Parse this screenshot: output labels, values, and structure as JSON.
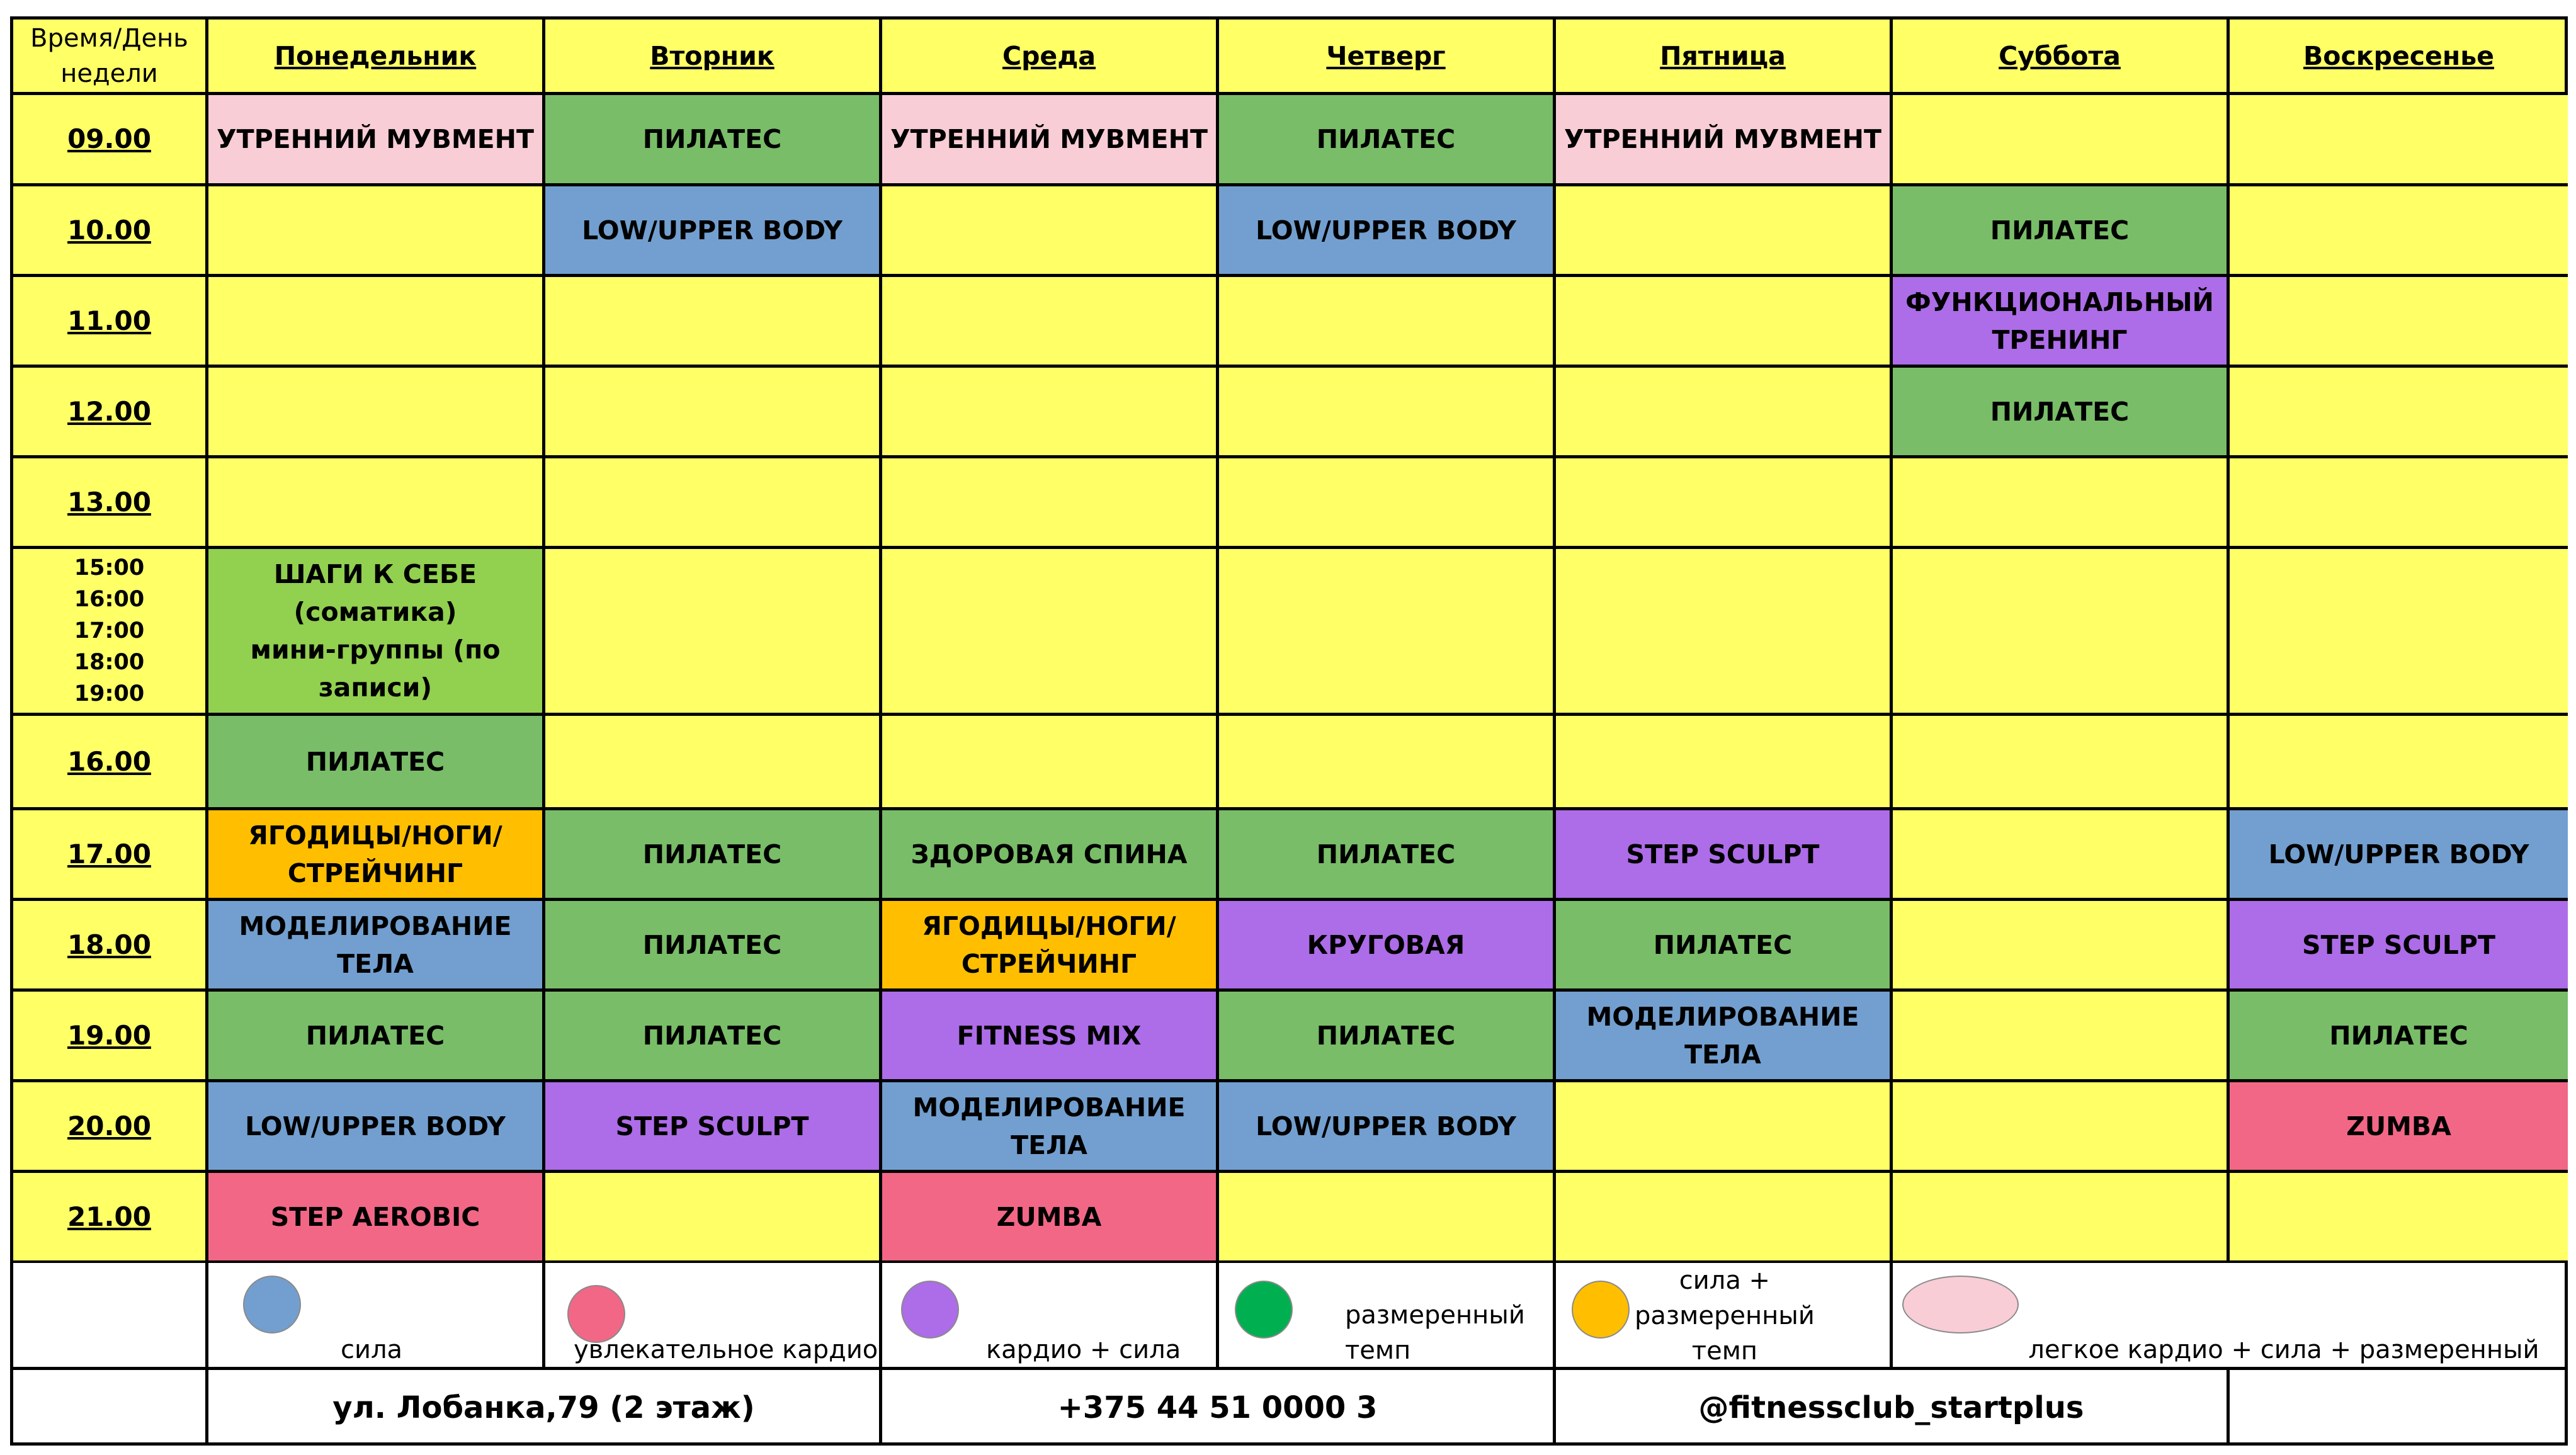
{
  "corner_label": "Время/День\nнедели",
  "days": [
    "Понедельник",
    "Вторник",
    "Среда",
    "Четверг",
    "Пятница",
    "Суббота",
    "Воскресенье"
  ],
  "times": [
    "09.00",
    "10.00",
    "11.00",
    "12.00",
    "13.00",
    "15:00\n16:00\n17:00\n18:00\n19:00",
    "16.00",
    "17.00",
    "18.00",
    "19.00",
    "20.00",
    "21.00"
  ],
  "colors": {
    "background": "#ffff66",
    "light_pink": "#f8cdd6",
    "green": "#79bd68",
    "blue": "#729fcf",
    "purple": "#ad6ce8",
    "orange": "#ffbf00",
    "red_pink": "#f26786",
    "light_green": "#92d050",
    "legend_green": "#00b050"
  },
  "grid": [
    [
      {
        "text": "УТРЕННИЙ МУВМЕНТ",
        "color": "light_pink"
      },
      {
        "text": "ПИЛАТЕС",
        "color": "green"
      },
      {
        "text": "УТРЕННИЙ МУВМЕНТ",
        "color": "light_pink"
      },
      {
        "text": "ПИЛАТЕС",
        "color": "green"
      },
      {
        "text": "УТРЕННИЙ МУВМЕНТ",
        "color": "light_pink"
      },
      null,
      null
    ],
    [
      null,
      {
        "text": "LOW/UPPER BODY",
        "color": "blue"
      },
      null,
      {
        "text": "LOW/UPPER BODY",
        "color": "blue"
      },
      null,
      {
        "text": "ПИЛАТЕС",
        "color": "green"
      },
      null
    ],
    [
      null,
      null,
      null,
      null,
      null,
      {
        "text": "ФУНКЦИОНАЛЬНЫЙ\nТРЕНИНГ",
        "color": "purple"
      },
      null
    ],
    [
      null,
      null,
      null,
      null,
      null,
      {
        "text": "ПИЛАТЕС",
        "color": "green"
      },
      null
    ],
    [
      null,
      null,
      null,
      null,
      null,
      null,
      null
    ],
    [
      {
        "text": "ШАГИ К СЕБЕ (соматика)\nмини-группы (по записи)",
        "color": "light_green"
      },
      null,
      null,
      null,
      null,
      null,
      null
    ],
    [
      {
        "text": "ПИЛАТЕС",
        "color": "green"
      },
      null,
      null,
      null,
      null,
      null,
      null
    ],
    [
      {
        "text": "ЯГОДИЦЫ/НОГИ/\nСТРЕЙЧИНГ",
        "color": "orange"
      },
      {
        "text": "ПИЛАТЕС",
        "color": "green"
      },
      {
        "text": "ЗДОРОВАЯ СПИНА",
        "color": "green"
      },
      {
        "text": "ПИЛАТЕС",
        "color": "green"
      },
      {
        "text": "STEP SCULPT",
        "color": "purple"
      },
      null,
      {
        "text": "LOW/UPPER BODY",
        "color": "blue"
      }
    ],
    [
      {
        "text": "МОДЕЛИРОВАНИЕ ТЕЛА",
        "color": "blue"
      },
      {
        "text": "ПИЛАТЕС",
        "color": "green"
      },
      {
        "text": "ЯГОДИЦЫ/НОГИ/\nСТРЕЙЧИНГ",
        "color": "orange"
      },
      {
        "text": "КРУГОВАЯ",
        "color": "purple"
      },
      {
        "text": "ПИЛАТЕС",
        "color": "green"
      },
      null,
      {
        "text": "STEP SCULPT",
        "color": "purple"
      }
    ],
    [
      {
        "text": "ПИЛАТЕС",
        "color": "green"
      },
      {
        "text": "ПИЛАТЕС",
        "color": "green"
      },
      {
        "text": "FITNESS MIX",
        "color": "purple"
      },
      {
        "text": "ПИЛАТЕС",
        "color": "green"
      },
      {
        "text": "МОДЕЛИРОВАНИЕ ТЕЛА",
        "color": "blue"
      },
      null,
      {
        "text": "ПИЛАТЕС",
        "color": "green"
      }
    ],
    [
      {
        "text": "LOW/UPPER BODY",
        "color": "blue"
      },
      {
        "text": "STEP SCULPT",
        "color": "purple"
      },
      {
        "text": "МОДЕЛИРОВАНИЕ ТЕЛА",
        "color": "blue"
      },
      {
        "text": "LOW/UPPER BODY",
        "color": "blue"
      },
      null,
      null,
      {
        "text": "ZUMBA",
        "color": "red_pink"
      }
    ],
    [
      {
        "text": "STEP AEROBIC",
        "color": "red_pink"
      },
      null,
      {
        "text": "ZUMBA",
        "color": "red_pink"
      },
      null,
      null,
      null,
      null
    ]
  ],
  "legend": [
    {
      "label": "сила",
      "color": "blue"
    },
    {
      "label": "увлекательное кардио",
      "color": "red_pink"
    },
    {
      "label": "кардио + сила",
      "color": "purple"
    },
    {
      "label": "размеренный\nтемп",
      "color": "legend_green"
    },
    {
      "label": "сила  +\nразмеренный\nтемп",
      "color": "orange"
    },
    {
      "label": "легкое кардио + сила + размеренный темп",
      "color": "light_pink"
    }
  ],
  "footer": {
    "address": "ул. Лобанка,79 (2 этаж)",
    "phone": "+375 44 51 0000 3",
    "social": "@fitnessclub_startplus"
  }
}
